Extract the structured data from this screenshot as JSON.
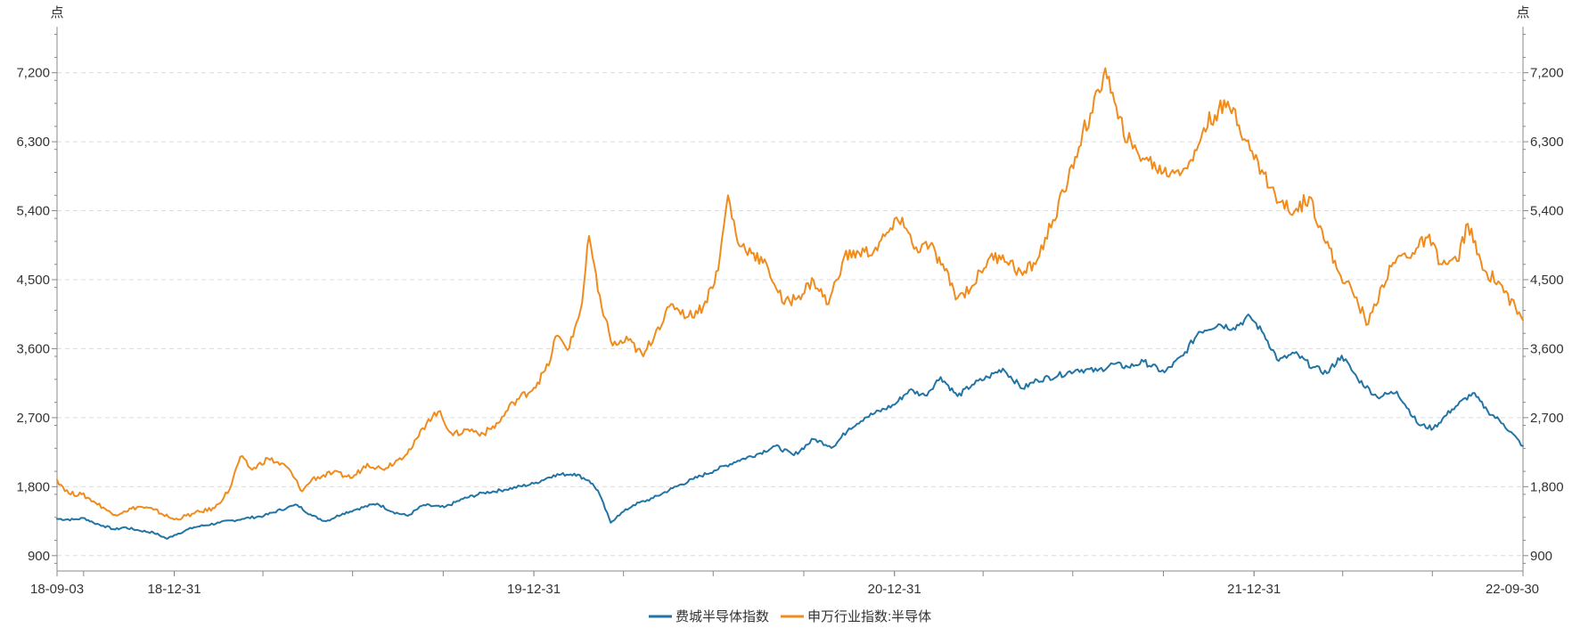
{
  "chart_data": {
    "type": "line",
    "title": "",
    "y_unit_left": "点",
    "y_unit_right": "点",
    "x_tick_labels": [
      "18-09-03",
      "18-12-31",
      "19-12-31",
      "20-12-31",
      "21-12-31",
      "22-09-30"
    ],
    "x_tick_dates": [
      "2018-09-03",
      "2018-12-31",
      "2019-12-31",
      "2020-12-31",
      "2021-12-31",
      "2022-09-30"
    ],
    "xlim": [
      "2018-09-03",
      "2022-09-30"
    ],
    "ylim": [
      700,
      7800
    ],
    "y_ticks": [
      900,
      1800,
      2700,
      3600,
      4500,
      5400,
      6300,
      7200
    ],
    "y_tick_labels": [
      "900",
      "1,800",
      "2,700",
      "3,600",
      "4,500",
      "5,400",
      "6,300",
      "7,200"
    ],
    "grid": true,
    "legend_position": "bottom-center",
    "series": [
      {
        "name": "费城半导体指数",
        "color": "#2274a5",
        "points": [
          [
            "2018-09-03",
            1380
          ],
          [
            "2018-09-20",
            1370
          ],
          [
            "2018-10-01",
            1390
          ],
          [
            "2018-10-10",
            1330
          ],
          [
            "2018-10-20",
            1290
          ],
          [
            "2018-11-01",
            1240
          ],
          [
            "2018-11-10",
            1270
          ],
          [
            "2018-11-25",
            1230
          ],
          [
            "2018-12-10",
            1200
          ],
          [
            "2018-12-24",
            1120
          ],
          [
            "2018-12-31",
            1170
          ],
          [
            "2019-01-20",
            1270
          ],
          [
            "2019-02-15",
            1330
          ],
          [
            "2019-03-10",
            1380
          ],
          [
            "2019-04-01",
            1420
          ],
          [
            "2019-04-25",
            1530
          ],
          [
            "2019-05-05",
            1560
          ],
          [
            "2019-05-20",
            1420
          ],
          [
            "2019-06-03",
            1350
          ],
          [
            "2019-06-20",
            1450
          ],
          [
            "2019-07-05",
            1510
          ],
          [
            "2019-07-25",
            1580
          ],
          [
            "2019-08-10",
            1470
          ],
          [
            "2019-08-25",
            1420
          ],
          [
            "2019-09-10",
            1560
          ],
          [
            "2019-10-01",
            1530
          ],
          [
            "2019-10-20",
            1640
          ],
          [
            "2019-11-10",
            1720
          ],
          [
            "2019-12-01",
            1760
          ],
          [
            "2019-12-31",
            1840
          ],
          [
            "2020-01-20",
            1950
          ],
          [
            "2020-02-10",
            1970
          ],
          [
            "2020-02-25",
            1880
          ],
          [
            "2020-03-05",
            1750
          ],
          [
            "2020-03-18",
            1330
          ],
          [
            "2020-03-25",
            1420
          ],
          [
            "2020-04-10",
            1560
          ],
          [
            "2020-04-30",
            1650
          ],
          [
            "2020-05-20",
            1780
          ],
          [
            "2020-06-10",
            1900
          ],
          [
            "2020-07-01",
            2010
          ],
          [
            "2020-07-25",
            2140
          ],
          [
            "2020-08-15",
            2230
          ],
          [
            "2020-09-01",
            2330
          ],
          [
            "2020-09-20",
            2210
          ],
          [
            "2020-10-10",
            2420
          ],
          [
            "2020-10-30",
            2320
          ],
          [
            "2020-11-15",
            2560
          ],
          [
            "2020-12-01",
            2700
          ],
          [
            "2020-12-31",
            2870
          ],
          [
            "2021-01-15",
            3060
          ],
          [
            "2021-01-31",
            2990
          ],
          [
            "2021-02-16",
            3230
          ],
          [
            "2021-03-05",
            2980
          ],
          [
            "2021-03-20",
            3130
          ],
          [
            "2021-04-05",
            3230
          ],
          [
            "2021-04-20",
            3340
          ],
          [
            "2021-05-10",
            3080
          ],
          [
            "2021-05-25",
            3190
          ],
          [
            "2021-06-15",
            3250
          ],
          [
            "2021-07-05",
            3330
          ],
          [
            "2021-07-25",
            3310
          ],
          [
            "2021-08-10",
            3400
          ],
          [
            "2021-08-25",
            3360
          ],
          [
            "2021-09-10",
            3430
          ],
          [
            "2021-10-01",
            3290
          ],
          [
            "2021-10-20",
            3510
          ],
          [
            "2021-11-05",
            3820
          ],
          [
            "2021-11-25",
            3920
          ],
          [
            "2021-12-10",
            3870
          ],
          [
            "2021-12-27",
            4020
          ],
          [
            "2022-01-10",
            3790
          ],
          [
            "2022-01-25",
            3440
          ],
          [
            "2022-02-10",
            3540
          ],
          [
            "2022-03-01",
            3360
          ],
          [
            "2022-03-15",
            3280
          ],
          [
            "2022-03-30",
            3510
          ],
          [
            "2022-04-15",
            3210
          ],
          [
            "2022-05-05",
            2970
          ],
          [
            "2022-05-25",
            3040
          ],
          [
            "2022-06-16",
            2610
          ],
          [
            "2022-07-01",
            2560
          ],
          [
            "2022-07-20",
            2810
          ],
          [
            "2022-08-10",
            3020
          ],
          [
            "2022-08-25",
            2790
          ],
          [
            "2022-09-10",
            2620
          ],
          [
            "2022-09-30",
            2330
          ]
        ]
      },
      {
        "name": "申万行业指数:半导体",
        "color": "#f08c1e",
        "points": [
          [
            "2018-09-03",
            1890
          ],
          [
            "2018-09-15",
            1710
          ],
          [
            "2018-09-28",
            1700
          ],
          [
            "2018-10-10",
            1610
          ],
          [
            "2018-10-20",
            1530
          ],
          [
            "2018-10-30",
            1430
          ],
          [
            "2018-11-10",
            1480
          ],
          [
            "2018-11-25",
            1540
          ],
          [
            "2018-12-10",
            1500
          ],
          [
            "2018-12-31",
            1370
          ],
          [
            "2019-01-20",
            1450
          ],
          [
            "2019-02-10",
            1520
          ],
          [
            "2019-02-25",
            1760
          ],
          [
            "2019-03-08",
            2190
          ],
          [
            "2019-03-20",
            2020
          ],
          [
            "2019-04-05",
            2170
          ],
          [
            "2019-04-25",
            2050
          ],
          [
            "2019-05-10",
            1740
          ],
          [
            "2019-05-20",
            1900
          ],
          [
            "2019-06-10",
            1980
          ],
          [
            "2019-06-30",
            1920
          ],
          [
            "2019-07-15",
            2100
          ],
          [
            "2019-07-30",
            2030
          ],
          [
            "2019-08-15",
            2150
          ],
          [
            "2019-08-30",
            2320
          ],
          [
            "2019-09-15",
            2680
          ],
          [
            "2019-09-25",
            2780
          ],
          [
            "2019-10-10",
            2470
          ],
          [
            "2019-10-25",
            2550
          ],
          [
            "2019-11-10",
            2490
          ],
          [
            "2019-11-25",
            2630
          ],
          [
            "2019-12-10",
            2900
          ],
          [
            "2019-12-31",
            3090
          ],
          [
            "2020-01-15",
            3380
          ],
          [
            "2020-01-22",
            3760
          ],
          [
            "2020-02-05",
            3610
          ],
          [
            "2020-02-18",
            4200
          ],
          [
            "2020-02-25",
            5070
          ],
          [
            "2020-03-05",
            4350
          ],
          [
            "2020-03-20",
            3640
          ],
          [
            "2020-04-05",
            3710
          ],
          [
            "2020-04-20",
            3500
          ],
          [
            "2020-05-05",
            3880
          ],
          [
            "2020-05-20",
            4180
          ],
          [
            "2020-06-05",
            4020
          ],
          [
            "2020-06-20",
            4150
          ],
          [
            "2020-07-05",
            4620
          ],
          [
            "2020-07-15",
            5600
          ],
          [
            "2020-07-25",
            4980
          ],
          [
            "2020-08-10",
            4850
          ],
          [
            "2020-08-25",
            4640
          ],
          [
            "2020-09-10",
            4180
          ],
          [
            "2020-09-25",
            4290
          ],
          [
            "2020-10-10",
            4490
          ],
          [
            "2020-10-25",
            4180
          ],
          [
            "2020-11-10",
            4800
          ],
          [
            "2020-11-25",
            4850
          ],
          [
            "2020-12-10",
            4870
          ],
          [
            "2020-12-25",
            5120
          ],
          [
            "2021-01-08",
            5310
          ],
          [
            "2021-01-20",
            4900
          ],
          [
            "2021-02-05",
            4950
          ],
          [
            "2021-02-20",
            4620
          ],
          [
            "2021-03-05",
            4260
          ],
          [
            "2021-03-20",
            4420
          ],
          [
            "2021-04-05",
            4760
          ],
          [
            "2021-04-20",
            4820
          ],
          [
            "2021-05-10",
            4560
          ],
          [
            "2021-05-25",
            4760
          ],
          [
            "2021-06-10",
            5280
          ],
          [
            "2021-06-25",
            5780
          ],
          [
            "2021-07-10",
            6420
          ],
          [
            "2021-07-20",
            6680
          ],
          [
            "2021-08-02",
            7260
          ],
          [
            "2021-08-15",
            6600
          ],
          [
            "2021-08-30",
            6210
          ],
          [
            "2021-09-15",
            6050
          ],
          [
            "2021-09-30",
            5900
          ],
          [
            "2021-10-15",
            5930
          ],
          [
            "2021-10-30",
            6050
          ],
          [
            "2021-11-10",
            6480
          ],
          [
            "2021-11-25",
            6720
          ],
          [
            "2021-12-10",
            6740
          ],
          [
            "2021-12-27",
            6190
          ],
          [
            "2022-01-10",
            5880
          ],
          [
            "2022-01-25",
            5510
          ],
          [
            "2022-02-10",
            5390
          ],
          [
            "2022-02-25",
            5580
          ],
          [
            "2022-03-10",
            5150
          ],
          [
            "2022-03-25",
            4640
          ],
          [
            "2022-04-10",
            4340
          ],
          [
            "2022-04-26",
            3920
          ],
          [
            "2022-05-10",
            4430
          ],
          [
            "2022-05-25",
            4780
          ],
          [
            "2022-06-10",
            4850
          ],
          [
            "2022-06-25",
            5050
          ],
          [
            "2022-07-10",
            4700
          ],
          [
            "2022-07-25",
            4740
          ],
          [
            "2022-08-05",
            5230
          ],
          [
            "2022-08-20",
            4630
          ],
          [
            "2022-09-05",
            4480
          ],
          [
            "2022-09-30",
            3970
          ]
        ]
      }
    ]
  }
}
